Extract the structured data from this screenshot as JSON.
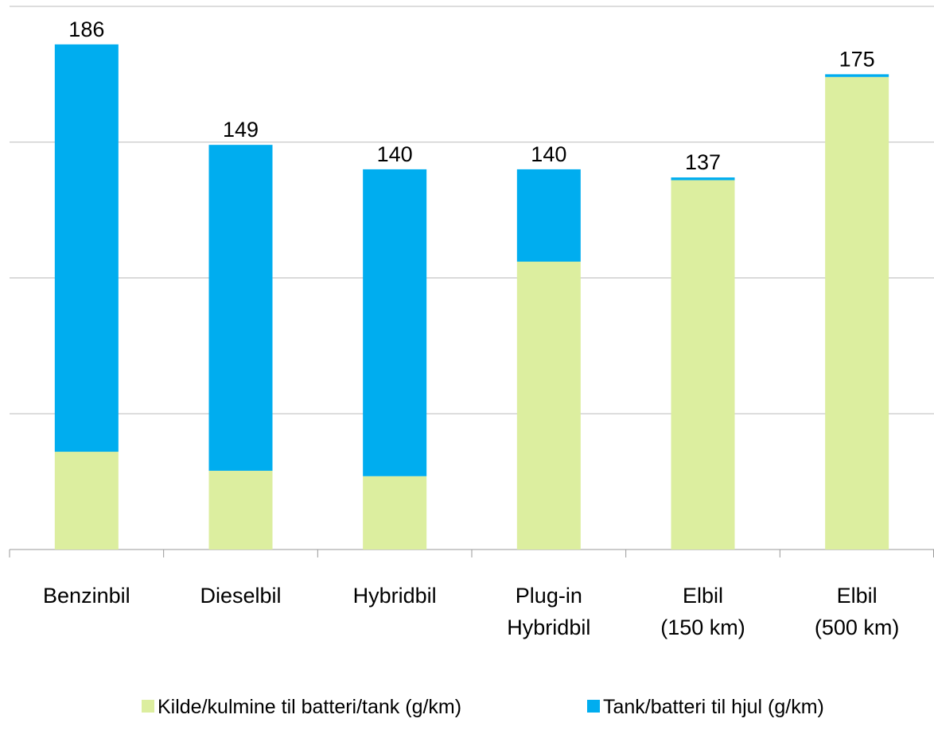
{
  "chart_data": {
    "type": "stacked_bar",
    "categories": [
      "Benzinbil",
      "Dieselbil",
      "Hybridbil",
      "Plug-in\nHybridbil",
      "Elbil\n(150 km)",
      "Elbil\n(500 km)"
    ],
    "series": [
      {
        "name": "Kilde/kulmine til batteri/tank (g/km)",
        "color": "#dcee9f",
        "values": [
          36,
          29,
          27,
          106,
          136,
          174
        ]
      },
      {
        "name": "Tank/batteri til hjul (g/km)",
        "color": "#00adef",
        "values": [
          150,
          120,
          113,
          34,
          1,
          1
        ]
      }
    ],
    "totals": [
      186,
      149,
      140,
      140,
      137,
      175
    ],
    "ylim": [
      0,
      200
    ],
    "yticks": [
      0,
      50,
      100,
      150,
      200
    ],
    "grid": true,
    "legend": "bottom"
  }
}
